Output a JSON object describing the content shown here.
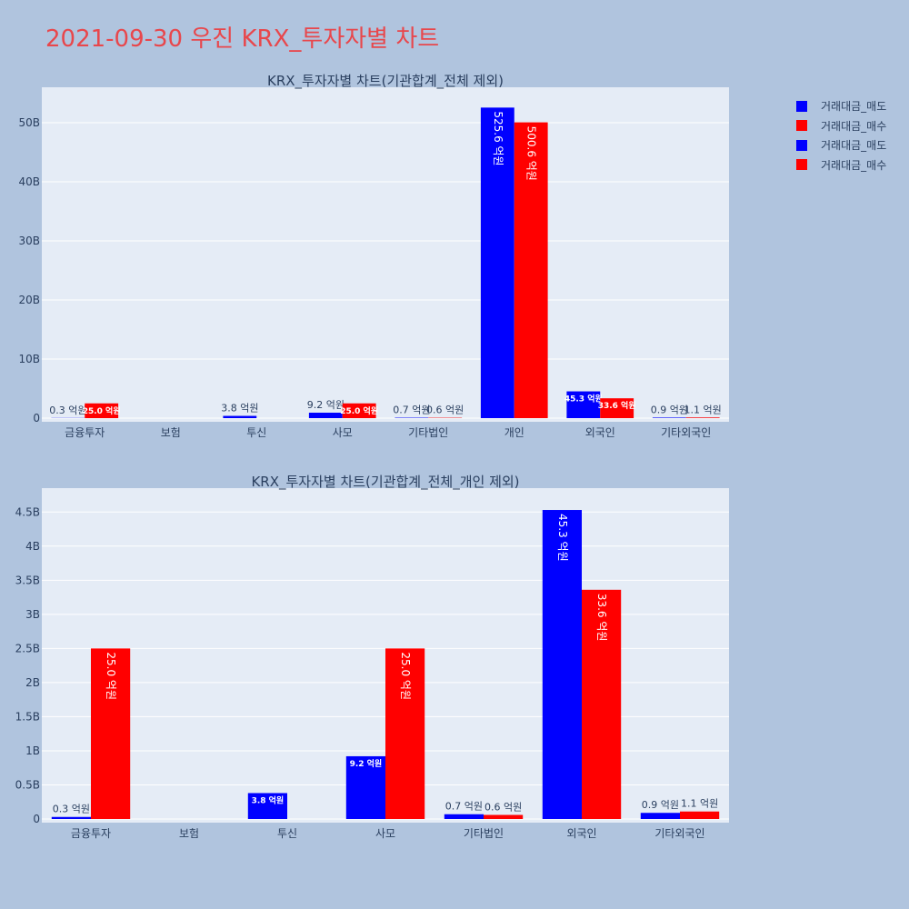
{
  "page_title": "2021-09-30 우진 KRX_투자자별 차트",
  "colors": {
    "sell": "#0000ff",
    "buy": "#ff0000",
    "plot_bg": "#e5ecf6",
    "page_bg": "#b0c4de",
    "title": "#e8474c"
  },
  "legend": [
    {
      "label": "거래대금_매도",
      "color": "#0000ff"
    },
    {
      "label": "거래대금_매수",
      "color": "#ff0000"
    },
    {
      "label": "거래대금_매도",
      "color": "#0000ff"
    },
    {
      "label": "거래대금_매수",
      "color": "#ff0000"
    }
  ],
  "chart_data": [
    {
      "type": "bar",
      "title": "KRX_투자자별 차트(기관합계_전체 제외)",
      "categories": [
        "금융투자",
        "보험",
        "투신",
        "사모",
        "기타법인",
        "개인",
        "외국인",
        "기타외국인"
      ],
      "ylim": [
        0,
        56000000000
      ],
      "yticks": [
        0,
        10000000000,
        20000000000,
        30000000000,
        40000000000,
        50000000000
      ],
      "ytick_labels": [
        "0",
        "10B",
        "20B",
        "30B",
        "40B",
        "50B"
      ],
      "grid": true,
      "legend_position": "top-right",
      "series": [
        {
          "name": "거래대금_매도",
          "color": "#0000ff",
          "values": [
            30000000,
            0,
            380000000,
            920000000,
            70000000,
            52560000000,
            4530000000,
            90000000
          ],
          "labels": [
            "0.3 억원",
            "",
            "3.8 억원",
            "9.2 억원",
            "0.7 억원",
            "525.6 억원",
            "45.3 억원",
            "0.9 억원"
          ]
        },
        {
          "name": "거래대금_매수",
          "color": "#ff0000",
          "values": [
            2500000000,
            0,
            0,
            2500000000,
            60000000,
            50060000000,
            3360000000,
            110000000
          ],
          "labels": [
            "25.0 억원",
            "",
            "",
            "25.0 억원",
            "0.6 억원",
            "500.6 억원",
            "33.6 억원",
            "1.1 억원"
          ]
        }
      ]
    },
    {
      "type": "bar",
      "title": "KRX_투자자별 차트(기관합계_전체_개인 제외)",
      "categories": [
        "금융투자",
        "보험",
        "투신",
        "사모",
        "기타법인",
        "외국인",
        "기타외국인"
      ],
      "ylim": [
        0,
        4850000000
      ],
      "yticks": [
        0,
        500000000,
        1000000000,
        1500000000,
        2000000000,
        2500000000,
        3000000000,
        3500000000,
        4000000000,
        4500000000
      ],
      "ytick_labels": [
        "0",
        "0.5B",
        "1B",
        "1.5B",
        "2B",
        "2.5B",
        "3B",
        "3.5B",
        "4B",
        "4.5B"
      ],
      "grid": true,
      "series": [
        {
          "name": "거래대금_매도",
          "color": "#0000ff",
          "values": [
            30000000,
            0,
            380000000,
            920000000,
            70000000,
            4530000000,
            90000000
          ],
          "labels": [
            "0.3 억원",
            "",
            "3.8 억원",
            "9.2 억원",
            "0.7 억원",
            "45.3 억원",
            "0.9 억원"
          ]
        },
        {
          "name": "거래대금_매수",
          "color": "#ff0000",
          "values": [
            2500000000,
            0,
            0,
            2500000000,
            60000000,
            3360000000,
            110000000
          ],
          "labels": [
            "25.0 억원",
            "",
            "",
            "25.0 억원",
            "0.6 억원",
            "33.6 억원",
            "1.1 억원"
          ]
        }
      ]
    }
  ]
}
